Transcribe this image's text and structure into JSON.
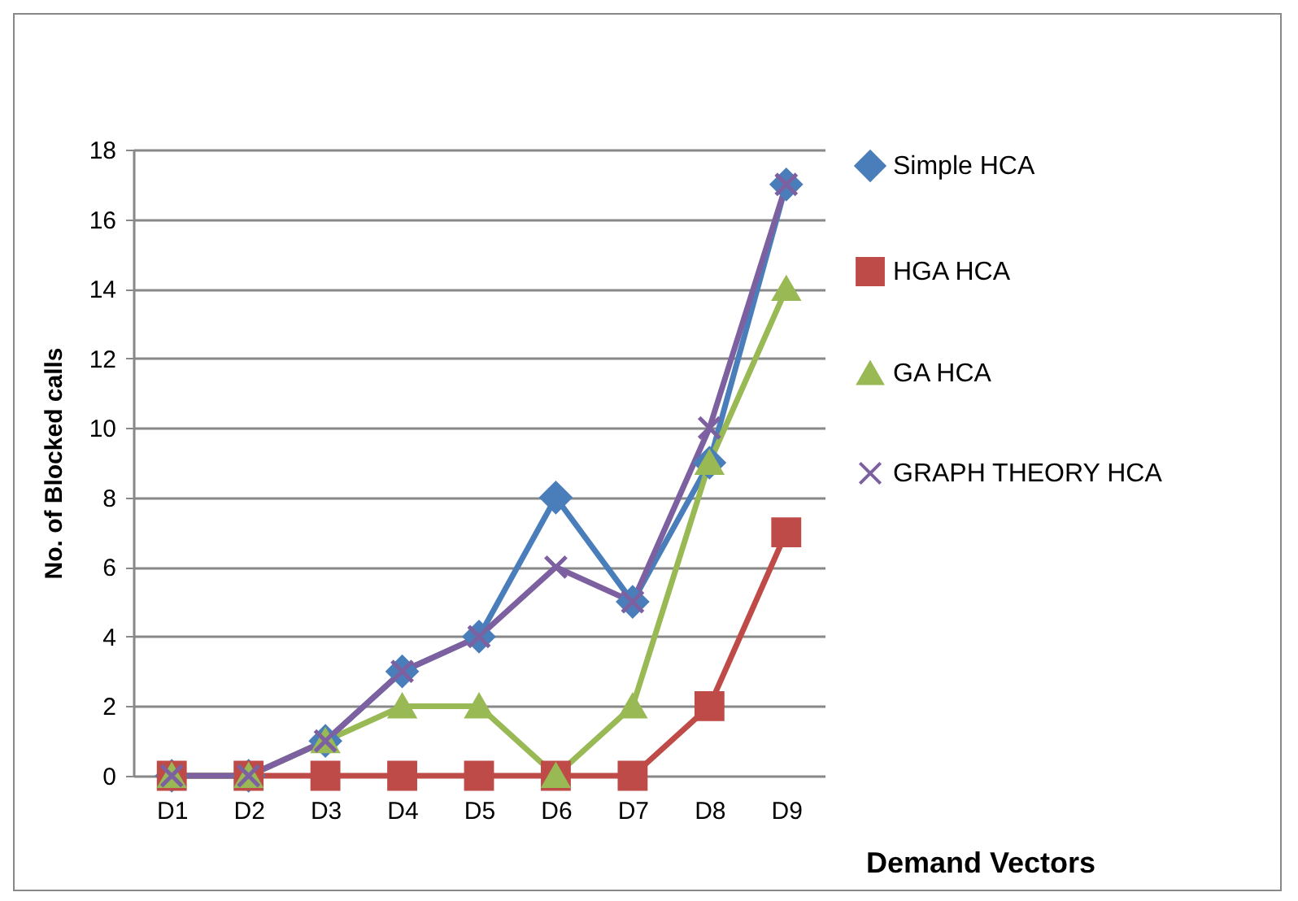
{
  "chart_data": {
    "type": "line",
    "xlabel": "Demand Vectors",
    "ylabel": "No. of Blocked calls",
    "categories": [
      "D1",
      "D2",
      "D3",
      "D4",
      "D5",
      "D6",
      "D7",
      "D8",
      "D9"
    ],
    "series": [
      {
        "name": "Simple HCA",
        "color": "#4a7ebb",
        "marker": "diamond",
        "values": [
          0,
          0,
          1,
          3,
          4,
          8,
          5,
          9,
          17
        ]
      },
      {
        "name": "HGA HCA",
        "color": "#be4b48",
        "marker": "square",
        "values": [
          0,
          0,
          0,
          0,
          0,
          0,
          0,
          2,
          7
        ]
      },
      {
        "name": "GA HCA",
        "color": "#98b954",
        "marker": "triangle",
        "values": [
          0,
          0,
          1,
          2,
          2,
          0,
          2,
          9,
          14
        ]
      },
      {
        "name": "GRAPH THEORY HCA",
        "color": "#7d60a0",
        "marker": "cross",
        "values": [
          0,
          0,
          1,
          3,
          4,
          6,
          5,
          10,
          17
        ]
      }
    ],
    "ylim": [
      0,
      18
    ],
    "yticks": [
      0,
      2,
      4,
      6,
      8,
      10,
      12,
      14,
      16,
      18
    ],
    "grid": "y",
    "legend": "right",
    "line_style": "solid"
  }
}
